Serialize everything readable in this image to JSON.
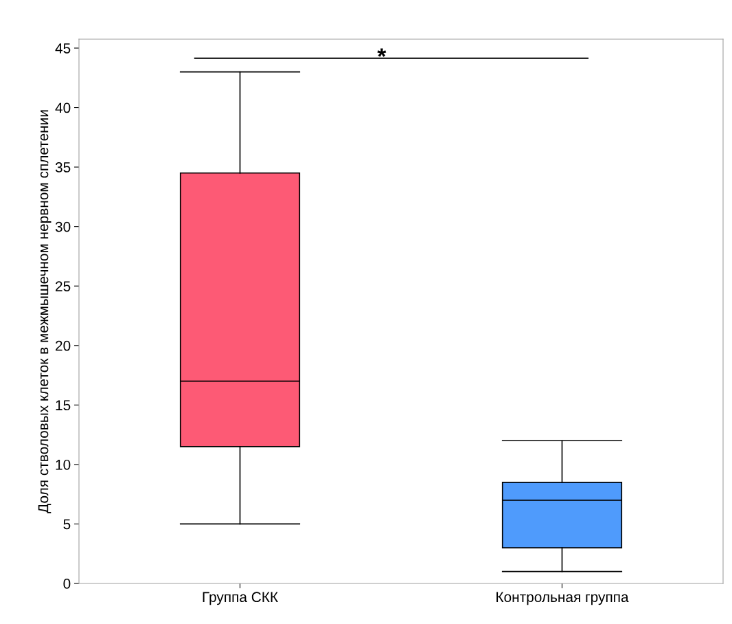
{
  "chart_data": {
    "type": "box",
    "ylabel": "Доля стволовых клеток в межмышечном нервном сплетении",
    "categories": [
      "Группа СКК",
      "Контрольная группа"
    ],
    "series": [
      {
        "color": "#fd5a75",
        "boxes": [
          {
            "low": 5,
            "q1": 11.5,
            "median": 17,
            "q3": 34.5,
            "high": 43
          },
          null
        ]
      },
      {
        "color": "#4f9bfc",
        "boxes": [
          null,
          {
            "low": 1,
            "q1": 3,
            "median": 7,
            "q3": 8.5,
            "high": 12
          }
        ]
      }
    ],
    "ylim": [
      0,
      45.75
    ],
    "yticks": [
      0,
      5,
      10,
      15,
      20,
      25,
      30,
      35,
      40,
      45
    ],
    "annotations": [
      "*"
    ],
    "grid": false,
    "legend": false
  }
}
